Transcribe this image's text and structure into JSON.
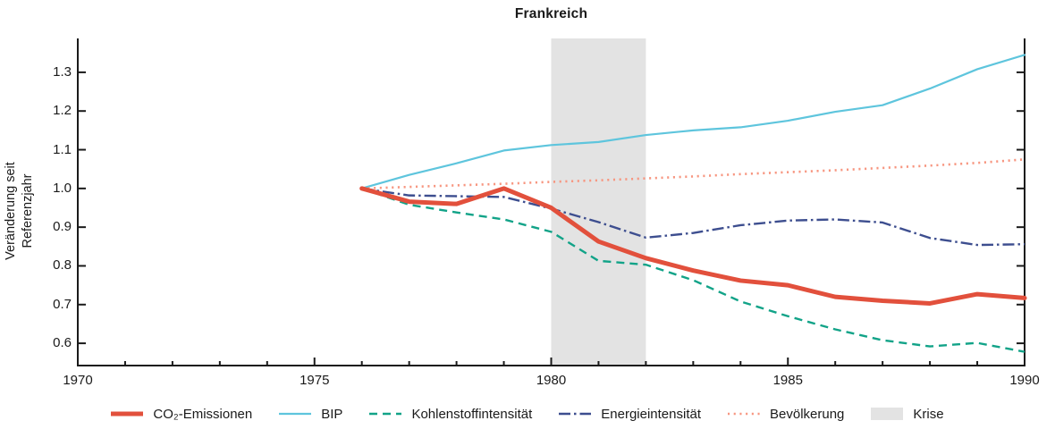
{
  "chart_data": {
    "type": "line",
    "title": "Frankreich",
    "ylabel_line1": "Veränderung seit",
    "ylabel_line2": "Referenzjahr",
    "x": [
      1976,
      1977,
      1978,
      1979,
      1980,
      1981,
      1982,
      1983,
      1984,
      1985,
      1986,
      1987,
      1988,
      1989,
      1990
    ],
    "x_range": [
      1970,
      1990
    ],
    "y_range": [
      0.5425,
      1.3875
    ],
    "x_tick_labels": [
      "1970",
      "1975",
      "1980",
      "1985",
      "1990"
    ],
    "y_tick_labels": [
      "0.6",
      "0.7",
      "0.8",
      "0.9",
      "1.0",
      "1.1",
      "1.2",
      "1.3"
    ],
    "grid": false,
    "legend_position": "bottom-center",
    "axis_color": "#1a1a1a",
    "crisis_band": {
      "label": "Krise",
      "x_start": 1980,
      "x_end": 1982,
      "color": "#e3e3e3"
    },
    "series": [
      {
        "name": "CO₂-Emissionen",
        "color": "#e2503c",
        "style": "solid",
        "width": 5,
        "values": [
          1.0,
          0.966,
          0.96,
          1.0,
          0.95,
          0.863,
          0.82,
          0.788,
          0.762,
          0.75,
          0.72,
          0.71,
          0.703,
          0.727,
          0.717
        ]
      },
      {
        "name": "BIP",
        "color": "#5ec5dd",
        "style": "solid",
        "width": 2.2,
        "values": [
          1.0,
          1.035,
          1.065,
          1.098,
          1.112,
          1.12,
          1.138,
          1.15,
          1.158,
          1.175,
          1.198,
          1.215,
          1.258,
          1.308,
          1.345
        ]
      },
      {
        "name": "Kohlenstoffintensität",
        "color": "#12a388",
        "style": "dashed",
        "width": 2.4,
        "values": [
          1.0,
          0.958,
          0.938,
          0.92,
          0.888,
          0.813,
          0.803,
          0.763,
          0.708,
          0.67,
          0.636,
          0.608,
          0.592,
          0.601,
          0.578
        ]
      },
      {
        "name": "Energieintensität",
        "color": "#3d4e8f",
        "style": "dashdot",
        "width": 2.4,
        "values": [
          1.0,
          0.982,
          0.98,
          0.978,
          0.948,
          0.913,
          0.873,
          0.885,
          0.905,
          0.917,
          0.92,
          0.912,
          0.872,
          0.854,
          0.856
        ]
      },
      {
        "name": "Bevölkerung",
        "color": "#f79680",
        "style": "dotted",
        "width": 2.6,
        "values": [
          1.0,
          1.004,
          1.008,
          1.012,
          1.017,
          1.021,
          1.026,
          1.031,
          1.037,
          1.042,
          1.047,
          1.053,
          1.059,
          1.066,
          1.075
        ]
      }
    ]
  }
}
